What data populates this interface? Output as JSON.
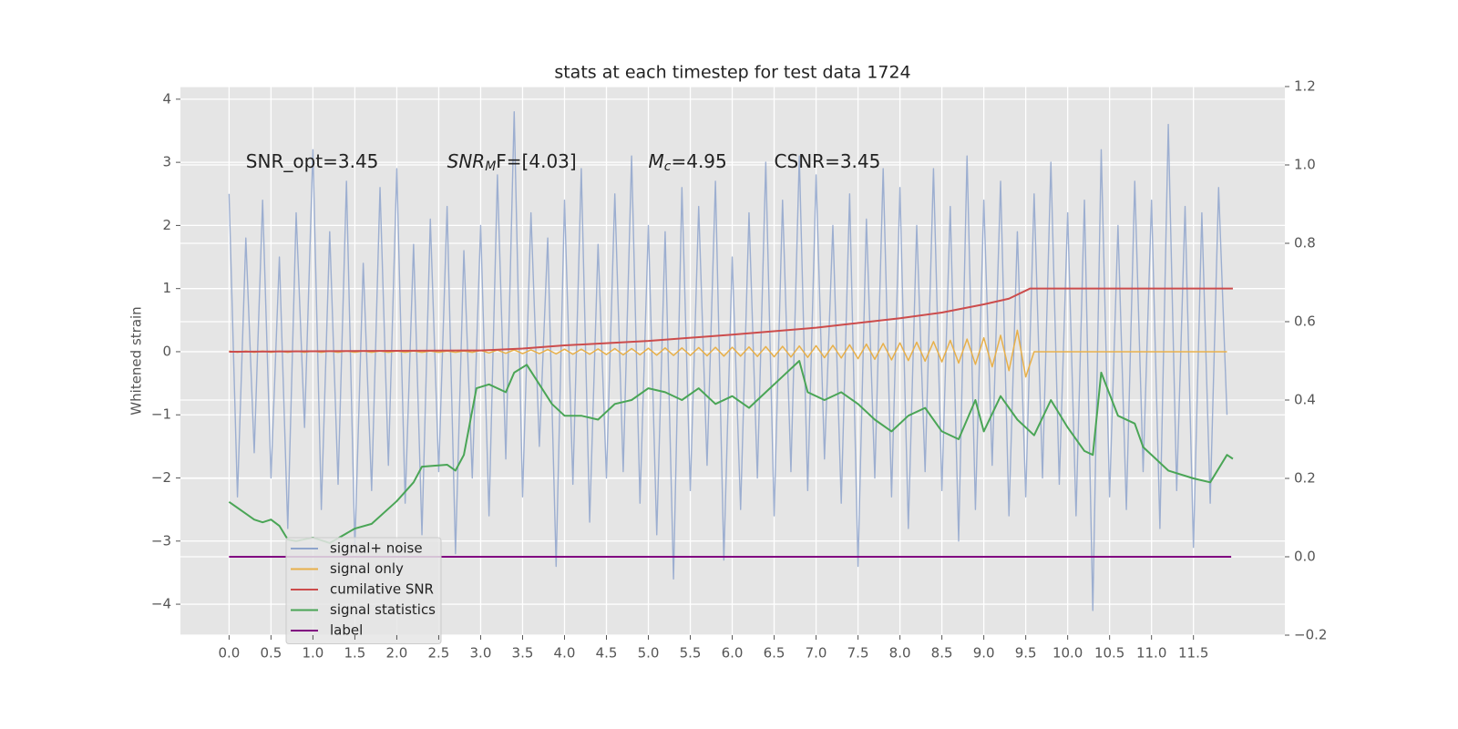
{
  "chart_data": {
    "type": "line",
    "title": "stats at each timestep for test data 1724",
    "y_label": "Whitened strain",
    "xlim": [
      -0.58,
      12.59
    ],
    "ylim": [
      -4.49,
      4.2
    ],
    "y2lim": [
      -0.2,
      1.2
    ],
    "grid": true,
    "legend": "lower left",
    "xticks": [
      {
        "value": 0,
        "label": "0.0"
      },
      0.5,
      {
        "value": 1,
        "label": "1.0"
      },
      1.5,
      {
        "value": 2,
        "label": "2.0"
      },
      2.5,
      {
        "value": 3,
        "label": "3.0"
      },
      3.5,
      {
        "value": 4,
        "label": "4.0"
      },
      4.5,
      {
        "value": 5,
        "label": "5.0"
      },
      5.5,
      {
        "value": 6,
        "label": "6.0"
      },
      6.5,
      {
        "value": 7,
        "label": "7.0"
      },
      7.5,
      {
        "value": 8,
        "label": "8.0"
      },
      8.5,
      {
        "value": 9,
        "label": "9.0"
      },
      9.5,
      {
        "value": 10,
        "label": "10.0"
      },
      10.5,
      {
        "value": 11,
        "label": "11.0"
      },
      11.5
    ],
    "yticks": [
      {
        "value": -4,
        "label": "−4"
      },
      {
        "value": -3,
        "label": "−3"
      },
      {
        "value": -2,
        "label": "−2"
      },
      {
        "value": -1,
        "label": "−1"
      },
      0,
      1,
      2,
      3,
      4
    ],
    "y2ticks": [
      {
        "value": -0.2,
        "label": "−0.2"
      },
      {
        "value": 0,
        "label": "0.0"
      },
      0.2,
      0.4,
      0.6,
      0.8,
      {
        "value": 1,
        "label": "1.0"
      },
      1.2
    ],
    "annotations": [
      [
        "SNR_opt=3.45"
      ],
      [
        "SNR",
        "M",
        "F=[4.03]"
      ],
      [
        "M",
        "c",
        "=4.95"
      ],
      [
        "CSNR=3.45"
      ]
    ],
    "annotation_x": [
      0.2,
      2.6,
      5.0,
      6.5
    ],
    "annotation_y": 3.0,
    "x": [
      0,
      0.1,
      0.2,
      0.3,
      0.4,
      0.5,
      0.6,
      0.7,
      0.8,
      0.9,
      1,
      1.1,
      1.2,
      1.3,
      1.4,
      1.5,
      1.6,
      1.7,
      1.8,
      1.9,
      2,
      2.1,
      2.2,
      2.3,
      2.4,
      2.5,
      2.6,
      2.7,
      2.8,
      2.9,
      3,
      3.1,
      3.2,
      3.3,
      3.4,
      3.5,
      3.6,
      3.7,
      3.8,
      3.9,
      4,
      4.1,
      4.2,
      4.3,
      4.4,
      4.5,
      4.6,
      4.7,
      4.8,
      4.9,
      5,
      5.1,
      5.2,
      5.3,
      5.4,
      5.5,
      5.6,
      5.7,
      5.8,
      5.9,
      6,
      6.1,
      6.2,
      6.3,
      6.4,
      6.5,
      6.6,
      6.7,
      6.8,
      6.9,
      7,
      7.1,
      7.2,
      7.3,
      7.4,
      7.5,
      7.6,
      7.7,
      7.8,
      7.9,
      8,
      8.1,
      8.2,
      8.3,
      8.4,
      8.5,
      8.6,
      8.7,
      8.8,
      8.9,
      9,
      9.1,
      9.2,
      9.3,
      9.4,
      9.5,
      9.6,
      9.7,
      9.8,
      9.9,
      10,
      10.1,
      10.2,
      10.3,
      10.4,
      10.5,
      10.6,
      10.7,
      10.8,
      10.9,
      11,
      11.1,
      11.2,
      11.3,
      11.4,
      11.5,
      11.6,
      11.7,
      11.8,
      11.9
    ],
    "series": [
      {
        "name": "signal+ noise",
        "color": "#8fa4cc",
        "axis": "y",
        "values": [
          2.5,
          -2.3,
          1.8,
          -1.6,
          2.4,
          -2.0,
          1.5,
          -2.8,
          2.2,
          -1.2,
          3.2,
          -2.5,
          1.9,
          -2.1,
          2.7,
          -3.1,
          1.4,
          -2.2,
          2.6,
          -1.8,
          2.9,
          -2.4,
          1.7,
          -2.9,
          2.1,
          -1.9,
          2.3,
          -3.2,
          1.6,
          -2.0,
          2.0,
          -2.6,
          2.8,
          -1.7,
          3.8,
          -2.3,
          2.2,
          -1.5,
          1.8,
          -3.4,
          2.4,
          -2.1,
          2.9,
          -2.7,
          1.7,
          -2.0,
          2.5,
          -1.9,
          3.1,
          -2.4,
          2.0,
          -2.9,
          1.9,
          -3.6,
          2.6,
          -2.2,
          2.3,
          -1.8,
          2.7,
          -3.3,
          1.5,
          -2.5,
          2.2,
          -2.0,
          3.0,
          -2.6,
          2.4,
          -1.9,
          3.1,
          -2.2,
          2.8,
          -1.7,
          2.0,
          -2.4,
          2.5,
          -3.4,
          2.1,
          -2.0,
          2.9,
          -2.3,
          2.6,
          -2.8,
          2.0,
          -1.9,
          2.9,
          -2.2,
          2.3,
          -3.0,
          3.1,
          -2.5,
          2.4,
          -1.8,
          2.7,
          -2.6,
          1.9,
          -2.3,
          2.5,
          -2.0,
          3.0,
          -2.1,
          2.2,
          -2.6,
          2.4,
          -4.1,
          3.2,
          -2.3,
          2.0,
          -2.5,
          2.7,
          -1.9,
          2.4,
          -2.8,
          3.6,
          -2.2,
          2.3,
          -3.1,
          2.2,
          -2.4,
          2.6,
          -1.0
        ]
      },
      {
        "name": "signal only",
        "color": "#e8b04a",
        "axis": "y",
        "values": [
          0.01,
          -0.01,
          0.01,
          -0.01,
          0.01,
          -0.01,
          0.01,
          -0.01,
          0.01,
          -0.01,
          0.01,
          -0.01,
          0.01,
          -0.01,
          0.01,
          -0.01,
          0.01,
          -0.01,
          0.01,
          -0.01,
          0.01,
          -0.01,
          0.01,
          -0.01,
          0.01,
          -0.01,
          0.01,
          -0.01,
          0.01,
          -0.01,
          0.02,
          -0.02,
          0.025,
          -0.025,
          0.03,
          -0.03,
          0.03,
          -0.03,
          0.035,
          -0.035,
          0.04,
          -0.04,
          0.04,
          -0.04,
          0.045,
          -0.045,
          0.05,
          -0.05,
          0.05,
          -0.05,
          0.055,
          -0.055,
          0.06,
          -0.06,
          0.06,
          -0.06,
          0.065,
          -0.065,
          0.07,
          -0.07,
          0.07,
          -0.07,
          0.075,
          -0.075,
          0.08,
          -0.08,
          0.085,
          -0.085,
          0.09,
          -0.09,
          0.095,
          -0.095,
          0.1,
          -0.1,
          0.11,
          -0.11,
          0.12,
          -0.12,
          0.13,
          -0.13,
          0.14,
          -0.14,
          0.15,
          -0.15,
          0.16,
          -0.16,
          0.18,
          -0.18,
          0.2,
          -0.2,
          0.22,
          -0.24,
          0.26,
          -0.3,
          0.34,
          -0.4,
          0,
          0,
          0,
          0,
          0,
          0,
          0,
          0,
          0,
          0,
          0,
          0,
          0,
          0,
          0,
          0,
          0,
          0,
          0,
          0,
          0,
          0,
          0,
          0
        ]
      },
      {
        "name": "cumilative SNR",
        "color": "#cc4c4c",
        "axis": "y",
        "x": [
          0,
          3,
          3.5,
          4,
          5,
          6,
          7,
          8,
          8.5,
          9,
          9.3,
          9.55,
          11.97
        ],
        "values": [
          0,
          0.02,
          0.05,
          0.1,
          0.17,
          0.27,
          0.38,
          0.53,
          0.62,
          0.75,
          0.84,
          1.0,
          1.0
        ]
      },
      {
        "name": "signal statistics",
        "color": "#4aa556",
        "axis": "y2",
        "x": [
          0,
          0.2,
          0.3,
          0.4,
          0.5,
          0.6,
          0.7,
          0.8,
          1.0,
          1.2,
          1.5,
          1.7,
          2.0,
          2.2,
          2.3,
          2.6,
          2.7,
          2.8,
          2.95,
          3.1,
          3.3,
          3.4,
          3.55,
          3.7,
          3.85,
          4.0,
          4.2,
          4.4,
          4.6,
          4.8,
          5.0,
          5.2,
          5.4,
          5.6,
          5.8,
          6.0,
          6.2,
          6.4,
          6.6,
          6.8,
          6.9,
          7.1,
          7.3,
          7.5,
          7.7,
          7.9,
          8.1,
          8.3,
          8.5,
          8.7,
          8.9,
          9.0,
          9.2,
          9.4,
          9.6,
          9.8,
          10.0,
          10.2,
          10.3,
          10.4,
          10.6,
          10.8,
          10.9,
          11.2,
          11.5,
          11.7,
          11.9,
          11.97
        ],
        "values": [
          0.14,
          0.11,
          0.095,
          0.088,
          0.095,
          0.079,
          0.044,
          0.04,
          0.049,
          0.035,
          0.072,
          0.084,
          0.142,
          0.19,
          0.23,
          0.235,
          0.22,
          0.26,
          0.43,
          0.44,
          0.42,
          0.47,
          0.49,
          0.44,
          0.39,
          0.36,
          0.36,
          0.35,
          0.39,
          0.4,
          0.43,
          0.42,
          0.4,
          0.43,
          0.39,
          0.41,
          0.38,
          0.42,
          0.46,
          0.5,
          0.42,
          0.4,
          0.42,
          0.39,
          0.35,
          0.32,
          0.36,
          0.38,
          0.32,
          0.3,
          0.4,
          0.32,
          0.41,
          0.35,
          0.31,
          0.4,
          0.33,
          0.27,
          0.26,
          0.47,
          0.36,
          0.34,
          0.28,
          0.22,
          0.2,
          0.19,
          0.26,
          0.25
        ]
      },
      {
        "name": "label",
        "color": "#800080",
        "axis": "y2",
        "x": [
          0,
          11.95
        ],
        "values": [
          0,
          0
        ]
      }
    ]
  }
}
